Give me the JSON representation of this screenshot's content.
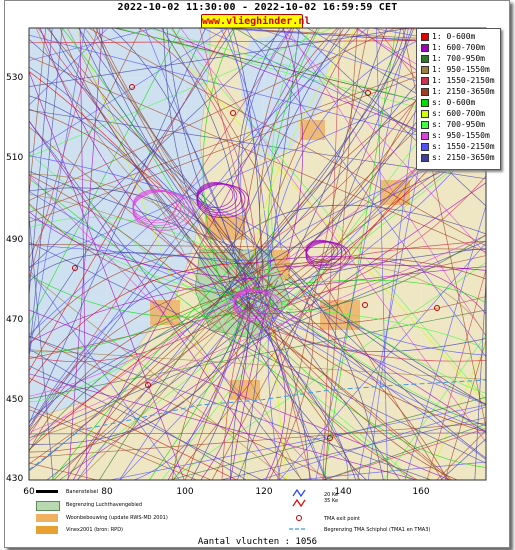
{
  "header": {
    "title": "2022-10-02 11:30:00 - 2022-10-02 16:59:59 CET",
    "site": "www.vlieghinder.nl"
  },
  "map": {
    "y_ticks": [
      "530",
      "510",
      "490",
      "470",
      "450",
      "430"
    ],
    "x_ticks": [
      "60",
      "80",
      "100",
      "120",
      "140",
      "160"
    ],
    "x_range": [
      60,
      175
    ],
    "y_range": [
      430,
      540
    ]
  },
  "legend": {
    "items": [
      {
        "label": "1: 0-600m",
        "color": "#e00000"
      },
      {
        "label": "1: 600-700m",
        "color": "#a000c0"
      },
      {
        "label": "1: 700-950m",
        "color": "#2a7a2a"
      },
      {
        "label": "1: 950-1550m",
        "color": "#a08040"
      },
      {
        "label": "1: 1550-2150m",
        "color": "#d03050"
      },
      {
        "label": "1: 2150-3650m",
        "color": "#a04020"
      },
      {
        "label": "s: 0-600m",
        "color": "#00e000"
      },
      {
        "label": "s: 600-700m",
        "color": "#d0ff00"
      },
      {
        "label": "s: 700-950m",
        "color": "#40ff40"
      },
      {
        "label": "s: 950-1550m",
        "color": "#e040e0"
      },
      {
        "label": "s: 1550-2150m",
        "color": "#5050ff"
      },
      {
        "label": "s: 2150-3650m",
        "color": "#4040a0"
      }
    ]
  },
  "footer": {
    "items": [
      {
        "label": "Banenstelsel"
      },
      {
        "label": "Begrenzing Luchthavengebied"
      },
      {
        "label": "Woonbebouwing (update RWS-MD 2001)"
      },
      {
        "label": "Vinex2001 (bron: RPD)"
      }
    ],
    "kw_labels": [
      "20 Ke",
      "35 Ke"
    ],
    "tma_exit": "TMA exit point",
    "tma_boundary": "Begrenzing TMA Schiphol  (TMA1 en TMA3)"
  },
  "count": "Aantal vluchten : 1056"
}
